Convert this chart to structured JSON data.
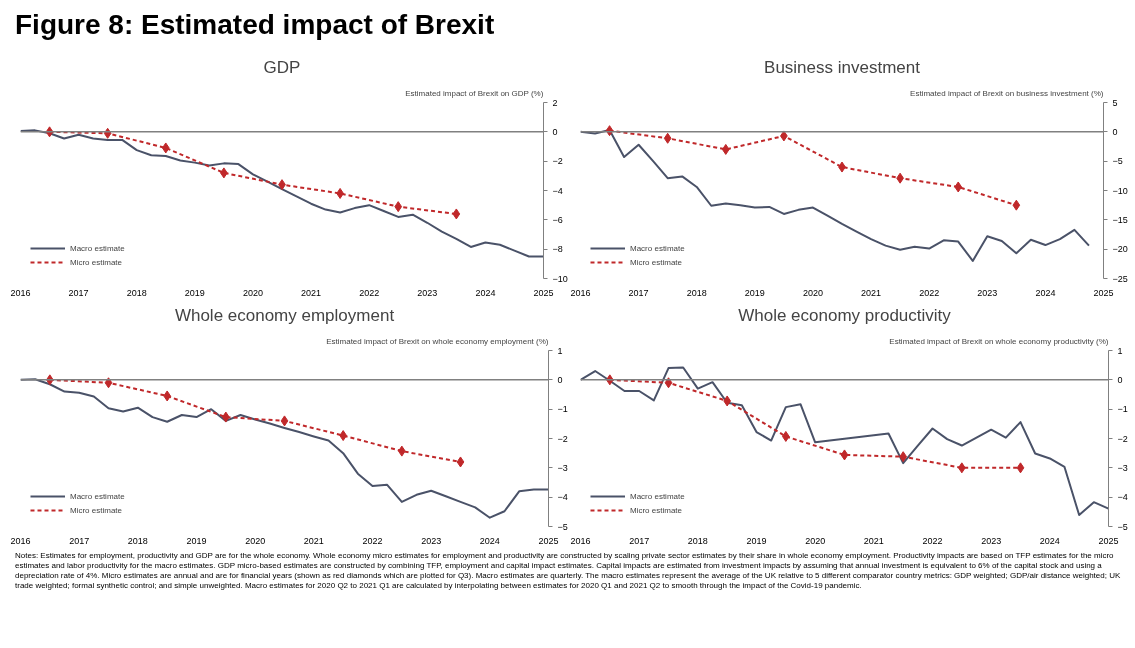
{
  "chart_data": [
    {
      "type": "line",
      "title": "GDP",
      "ylabel": "Estimated impact of Brexit on GDP (%)",
      "annotations": [
        "Figure 8: Estimated impact of Brexit"
      ],
      "xlim": [
        2016,
        2025
      ],
      "xticks": [
        2016,
        2017,
        2018,
        2019,
        2020,
        2021,
        2022,
        2023,
        2024,
        2025
      ],
      "ylim": [
        -10,
        2
      ],
      "yticks": [
        -10,
        -8,
        -6,
        -4,
        -2,
        0,
        2
      ],
      "grid": false,
      "legend": "bottom left",
      "ref_lines": [
        {
          "axis": "y",
          "value": 0,
          "color": "#808080"
        }
      ],
      "series": [
        {
          "name": "Macro estimate",
          "color": "#4a5268",
          "line_style": "solid",
          "marker": "none",
          "x": [
            2016,
            2016.25,
            2016.5,
            2016.75,
            2017,
            2017.25,
            2017.5,
            2017.75,
            2018,
            2018.25,
            2018.5,
            2018.75,
            2019,
            2019.25,
            2019.5,
            2019.75,
            2020,
            2020.25,
            2020.5,
            2020.75,
            2021,
            2021.25,
            2021.5,
            2021.75,
            2022,
            2022.25,
            2022.5,
            2022.75,
            2023,
            2023.25,
            2023.5,
            2023.75,
            2024,
            2024.25,
            2024.5,
            2024.75,
            2025
          ],
          "values": [
            0.05,
            0.1,
            -0.1,
            -0.45,
            -0.2,
            -0.45,
            -0.55,
            -0.55,
            -1.25,
            -1.6,
            -1.65,
            -1.95,
            -2.1,
            -2.3,
            -2.15,
            -2.2,
            -2.9,
            -3.4,
            -3.9,
            -4.4,
            -4.9,
            -5.3,
            -5.5,
            -5.2,
            -5.0,
            -5.4,
            -5.8,
            -5.65,
            -6.2,
            -6.8,
            -7.3,
            -7.85,
            -7.55,
            -7.7,
            -8.1,
            -8.5,
            -8.5
          ]
        },
        {
          "name": "Micro estimate",
          "color": "#c0282a",
          "line_style": "dashed",
          "marker": "diamond",
          "x": [
            2016.5,
            2017.5,
            2018.5,
            2019.5,
            2020.5,
            2021.5,
            2022.5,
            2023.5
          ],
          "values": [
            0.0,
            -0.1,
            -1.1,
            -2.8,
            -3.6,
            -4.2,
            -5.1,
            -5.6
          ]
        }
      ]
    },
    {
      "type": "line",
      "title": "Business investment",
      "ylabel": "Estimated impact of Brexit on business investment (%)",
      "xlim": [
        2016,
        2025
      ],
      "xticks": [
        2016,
        2017,
        2018,
        2019,
        2020,
        2021,
        2022,
        2023,
        2024,
        2025
      ],
      "ylim": [
        -25,
        5
      ],
      "yticks": [
        -25,
        -20,
        -15,
        -10,
        -5,
        0,
        5
      ],
      "grid": false,
      "legend": "bottom left",
      "ref_lines": [
        {
          "axis": "y",
          "value": 0,
          "color": "#808080"
        }
      ],
      "series": [
        {
          "name": "Macro estimate",
          "color": "#4a5268",
          "line_style": "solid",
          "marker": "none",
          "x": [
            2016,
            2016.25,
            2016.5,
            2016.75,
            2017,
            2017.25,
            2017.5,
            2017.75,
            2018,
            2018.25,
            2018.5,
            2018.75,
            2019,
            2019.25,
            2019.5,
            2019.75,
            2020,
            2020.25,
            2020.5,
            2020.75,
            2021,
            2021.25,
            2021.5,
            2021.75,
            2022,
            2022.25,
            2022.5,
            2022.75,
            2023,
            2023.25,
            2023.5,
            2023.75,
            2024,
            2024.25,
            2024.5,
            2024.75
          ],
          "values": [
            0,
            -0.3,
            0.3,
            -4.3,
            -2.2,
            -5,
            -7.9,
            -7.6,
            -9.4,
            -12.6,
            -12.2,
            -12.5,
            -12.9,
            -12.8,
            -14,
            -13.3,
            -12.9,
            -14.3,
            -15.7,
            -17.0,
            -18.3,
            -19.4,
            -20.1,
            -19.6,
            -19.9,
            -18.5,
            -18.7,
            -22.0,
            -17.8,
            -18.6,
            -20.7,
            -18.4,
            -19.3,
            -18.3,
            -16.7,
            -19.4
          ]
        },
        {
          "name": "Micro estimate",
          "color": "#c0282a",
          "line_style": "dashed",
          "marker": "diamond",
          "x": [
            2016.5,
            2017.5,
            2018.5,
            2019.5,
            2020.5,
            2021.5,
            2022.5,
            2023.5
          ],
          "values": [
            0.2,
            -1.1,
            -3.0,
            -0.7,
            -6.0,
            -7.9,
            -9.4,
            -12.5
          ]
        }
      ]
    },
    {
      "type": "line",
      "title": "Whole economy employment",
      "ylabel": "Estimated impact of Brexit on whole economy employment (%)",
      "xlim": [
        2016,
        2025
      ],
      "xticks": [
        2016,
        2017,
        2018,
        2019,
        2020,
        2021,
        2022,
        2023,
        2024,
        2025
      ],
      "ylim": [
        -5,
        1
      ],
      "yticks": [
        -5,
        -4,
        -3,
        -2,
        -1,
        0,
        1
      ],
      "grid": false,
      "legend": "bottom left",
      "ref_lines": [
        {
          "axis": "y",
          "value": 0,
          "color": "#808080"
        }
      ],
      "series": [
        {
          "name": "Macro estimate",
          "color": "#4a5268",
          "line_style": "solid",
          "marker": "none",
          "x": [
            2016,
            2016.25,
            2016.5,
            2016.75,
            2017,
            2017.25,
            2017.5,
            2017.75,
            2018,
            2018.25,
            2018.5,
            2018.75,
            2019,
            2019.25,
            2019.5,
            2019.75,
            2020,
            2020.25,
            2020.5,
            2020.75,
            2021,
            2021.25,
            2021.5,
            2021.75,
            2022,
            2022.25,
            2022.5,
            2022.75,
            2023,
            2023.25,
            2023.5,
            2023.75,
            2024,
            2024.25,
            2024.5,
            2024.75,
            2025
          ],
          "values": [
            0.0,
            0.02,
            -0.15,
            -0.4,
            -0.44,
            -0.57,
            -0.97,
            -1.08,
            -0.95,
            -1.27,
            -1.43,
            -1.2,
            -1.27,
            -1.0,
            -1.4,
            -1.2,
            -1.35,
            -1.49,
            -1.64,
            -1.78,
            -1.93,
            -2.07,
            -2.5,
            -3.2,
            -3.62,
            -3.58,
            -4.16,
            -3.92,
            -3.78,
            -3.97,
            -4.16,
            -4.35,
            -4.7,
            -4.48,
            -3.8,
            -3.74,
            -3.74
          ]
        },
        {
          "name": "Micro estimate",
          "color": "#c0282a",
          "line_style": "dashed",
          "marker": "diamond",
          "x": [
            2016.5,
            2017.5,
            2018.5,
            2019.5,
            2020.5,
            2021.5,
            2022.5,
            2023.5
          ],
          "values": [
            0.0,
            -0.1,
            -0.55,
            -1.27,
            -1.4,
            -1.9,
            -2.43,
            -2.8
          ]
        }
      ]
    },
    {
      "type": "line",
      "title": "Whole economy productivity",
      "ylabel": "Estimated impact of Brexit on whole economy productivity (%)",
      "annotations": [
        "Notes: Estimates for employment, productivity and GDP are for the whole economy. Whole economy micro estimates for employment and productivity are constructed by scaling private sector estimates by their share in whole economy employment. Productivity impacts are based on TFP estimates for the micro estimates and labor productivity for the macro estimates. GDP micro-based estimates are constructed by combining TFP, employment and capital impact estimates. Capital impacts are estimated from investment impacts by assuming that annual investment is equivalent to 6% of the capital stock and using a depreciation rate of 4%. Micro estimates are annual and are for financial years (shown as red diamonds which are plotted for Q3). Macro estimates are quarterly. The macro estimates represent the average of the UK relative to 5 different comparator country metrics: GDP weighted; GDP/air distance weighted; UK trade weighted; formal synthetic control; and simple unweighted. Macro estimates for 2020 Q2 to 2021 Q1 are calculated by interpolating between estimates for 2020 Q1 and 2021 Q2 to smooth through the impact of the Covid-19 pandemic."
      ],
      "xlim": [
        2016,
        2025
      ],
      "xticks": [
        2016,
        2017,
        2018,
        2019,
        2020,
        2021,
        2022,
        2023,
        2024,
        2025
      ],
      "ylim": [
        -5,
        1
      ],
      "yticks": [
        -5,
        -4,
        -3,
        -2,
        -1,
        0,
        1
      ],
      "grid": false,
      "legend": "bottom left",
      "ref_lines": [
        {
          "axis": "y",
          "value": 0,
          "color": "#808080"
        }
      ],
      "series": [
        {
          "name": "Macro estimate",
          "color": "#4a5268",
          "line_style": "solid",
          "marker": "none",
          "x": [
            2016,
            2016.25,
            2016.5,
            2016.75,
            2017,
            2017.25,
            2017.5,
            2017.75,
            2018,
            2018.25,
            2018.5,
            2018.75,
            2019,
            2019.25,
            2019.5,
            2019.75,
            2020,
            2020.25,
            2020.5,
            2020.75,
            2021,
            2021.25,
            2021.5,
            2021.75,
            2022,
            2022.25,
            2022.5,
            2022.75,
            2023,
            2023.25,
            2023.5,
            2023.75,
            2024,
            2024.25,
            2024.5,
            2024.75,
            2025
          ],
          "values": [
            0,
            0.3,
            -0.03,
            -0.38,
            -0.38,
            -0.7,
            0.4,
            0.42,
            -0.3,
            -0.08,
            -0.78,
            -0.87,
            -1.78,
            -2.07,
            -0.93,
            -0.83,
            -2.13,
            -2.07,
            -2.01,
            -1.95,
            -1.89,
            -1.83,
            -2.84,
            -2.24,
            -1.66,
            -2.02,
            -2.24,
            -1.97,
            -1.7,
            -1.97,
            -1.44,
            -2.51,
            -2.68,
            -2.97,
            -4.61,
            -4.17,
            -4.39
          ]
        },
        {
          "name": "Micro estimate",
          "color": "#c0282a",
          "line_style": "dashed",
          "marker": "diamond",
          "x": [
            2016.5,
            2017.5,
            2018.5,
            2019.5,
            2020.5,
            2021.5,
            2022.5,
            2023.5
          ],
          "values": [
            0.0,
            -0.1,
            -0.72,
            -1.93,
            -2.56,
            -2.62,
            -3.0,
            -3.0
          ]
        }
      ]
    }
  ]
}
